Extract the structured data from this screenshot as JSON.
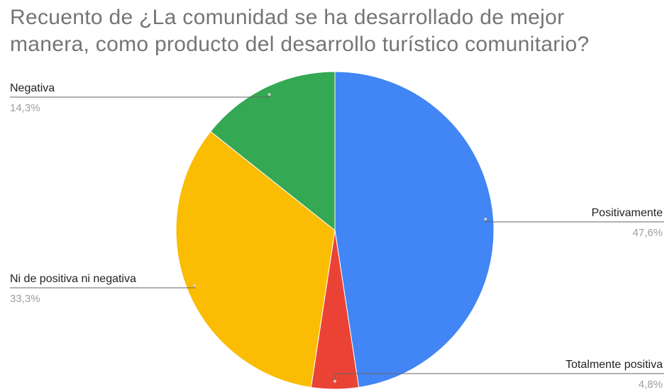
{
  "chart_data": {
    "type": "pie",
    "title_line1": "Recuento de ¿La comunidad se ha desarrollado de mejor",
    "title_line2": "manera, como producto del desarrollo turístico comunitario?",
    "slices": [
      {
        "name": "Positivamente",
        "value": 47.6,
        "label": "47,6%",
        "color": "#4285f4"
      },
      {
        "name": "Totalmente positiva",
        "value": 4.8,
        "label": "4,8%",
        "color": "#ea4335"
      },
      {
        "name": "Ni de positiva ni negativa",
        "value": 33.3,
        "label": "33,3%",
        "color": "#fbbc04"
      },
      {
        "name": "Negativa",
        "value": 14.3,
        "label": "14,3%",
        "color": "#34a853"
      }
    ],
    "start_angle": "top, clockwise",
    "legend": "none (callout labels)"
  }
}
